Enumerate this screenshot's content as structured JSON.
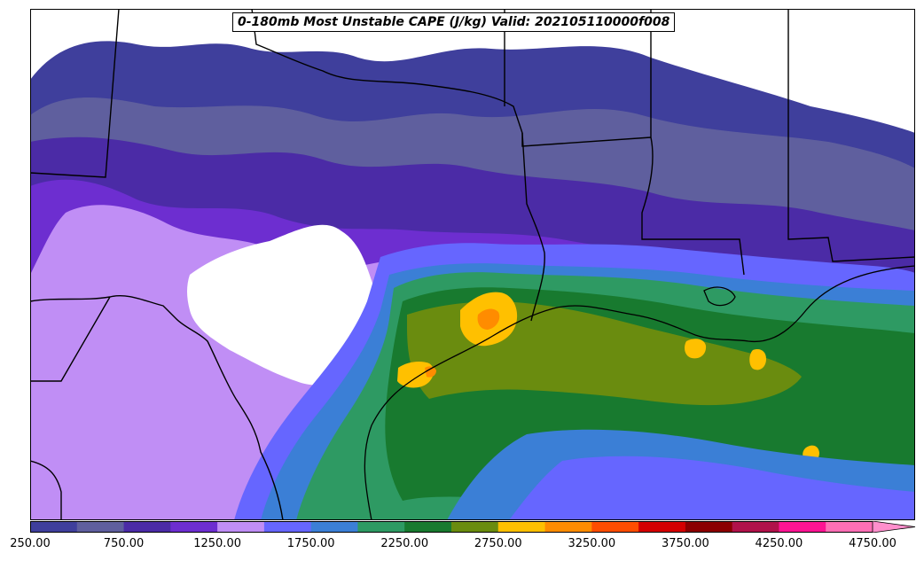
{
  "title": "0-180mb Most Unstable CAPE (J/kg) Valid: 202105110000f008",
  "colorbar": {
    "colors": [
      "#3f3f9c",
      "#5f5f9e",
      "#4b2ba6",
      "#6d2ed0",
      "#c08ef5",
      "#6666ff",
      "#3b7fd6",
      "#2e9a63",
      "#187a2f",
      "#6a8c0f",
      "#ffc000",
      "#ff8c00",
      "#ff4d00",
      "#d40000",
      "#8b0000",
      "#b0124a",
      "#ff1493",
      "#ff6fb5"
    ],
    "extend_color": "#ff8fcc",
    "tick_labels": [
      "250.00",
      "750.00",
      "1250.00",
      "1750.00",
      "2250.00",
      "2750.00",
      "3250.00",
      "3750.00",
      "4250.00",
      "4750.00"
    ],
    "range": [
      250,
      4750
    ]
  }
}
